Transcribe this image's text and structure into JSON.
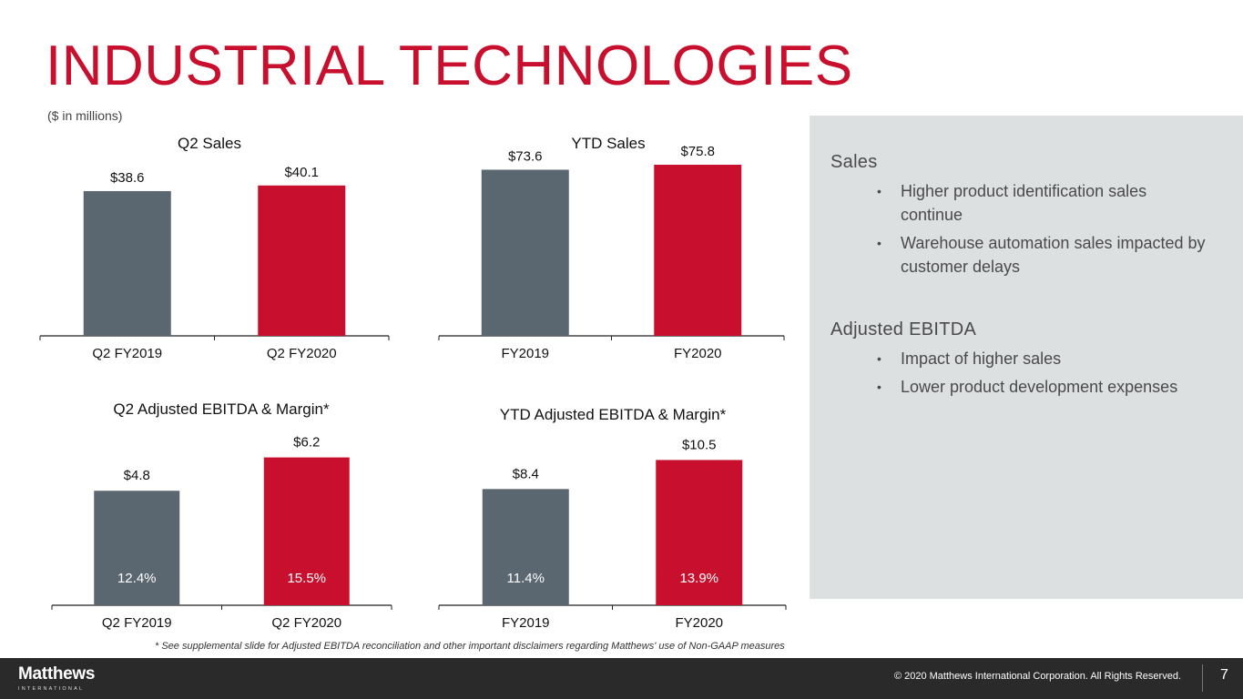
{
  "header": {
    "title": "INDUSTRIAL TECHNOLOGIES",
    "subtitle": "($ in millions)"
  },
  "colors": {
    "accent": "#C8102E",
    "prior_year_bar": "#5A6670",
    "current_year_bar": "#C8102E",
    "panel_bg": "#DDE0E1",
    "footer_bg": "#2B2A2B"
  },
  "chart_data": [
    {
      "type": "bar",
      "title": "Q2 Sales",
      "categories": [
        "Q2 FY2019",
        "Q2 FY2020"
      ],
      "values": [
        38.6,
        40.1
      ],
      "value_labels": [
        "$38.6",
        "$40.1"
      ],
      "xlabel": "",
      "ylabel": "",
      "grid": false
    },
    {
      "type": "bar",
      "title": "YTD Sales",
      "categories": [
        "FY2019",
        "FY2020"
      ],
      "values": [
        73.6,
        75.8
      ],
      "value_labels": [
        "$73.6",
        "$75.8"
      ],
      "xlabel": "",
      "ylabel": "",
      "grid": false
    },
    {
      "type": "bar",
      "title": "Q2 Adjusted EBITDA  & Margin*",
      "categories": [
        "Q2 FY2019",
        "Q2 FY2020"
      ],
      "values": [
        4.8,
        6.2
      ],
      "value_labels": [
        "$4.8",
        "$6.2"
      ],
      "margins": [
        "12.4%",
        "15.5%"
      ],
      "xlabel": "",
      "ylabel": "",
      "grid": false
    },
    {
      "type": "bar",
      "title": "YTD  Adjusted EBITDA  & Margin*",
      "categories": [
        "FY2019",
        "FY2020"
      ],
      "values": [
        8.4,
        10.5
      ],
      "value_labels": [
        "$8.4",
        "$10.5"
      ],
      "margins": [
        "11.4%",
        "13.9%"
      ],
      "xlabel": "",
      "ylabel": "",
      "grid": false
    }
  ],
  "commentary": {
    "sections": [
      {
        "heading": "Sales",
        "bullets": [
          "Higher product identification sales continue",
          "Warehouse automation sales impacted by customer delays"
        ]
      },
      {
        "heading": "Adjusted EBITDA",
        "bullets": [
          "Impact of higher sales",
          "Lower product development expenses"
        ]
      }
    ],
    "bullet_glyph": "•"
  },
  "footnote": "* See supplemental slide for Adjusted EBITDA reconciliation and other important disclaimers regarding Matthews' use of Non-GAAP measures",
  "footer": {
    "logo_name": "Matthews",
    "logo_sub": "INTERNATIONAL",
    "copyright": "© 2020 Matthews International Corporation. All Rights Reserved.",
    "page_number": "7"
  }
}
